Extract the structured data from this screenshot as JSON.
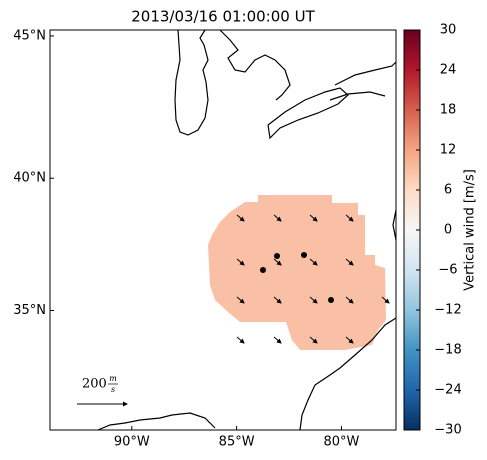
{
  "map": {
    "title": "2013/03/16 01:00:00 UT",
    "lonlim": [
      -93.9,
      -77.4
    ],
    "latlim": [
      30.2,
      45.2
    ],
    "lon_ticks": [
      {
        "value": -90,
        "label": "90°W"
      },
      {
        "value": -85,
        "label": "85°W"
      },
      {
        "value": -80,
        "label": "80°W"
      }
    ],
    "lat_ticks": [
      {
        "value": 45,
        "label": "45°N"
      },
      {
        "value": 40,
        "label": "40°N"
      },
      {
        "value": 35,
        "label": "35°N"
      }
    ],
    "field_value": 9,
    "scale_arrow": {
      "value": 200,
      "unit_top": "m",
      "unit_bottom": "s"
    },
    "colorbar": {
      "label": "Vertical wind [m/s]",
      "lim": [
        -30,
        30
      ],
      "colormap": [
        "#053061",
        "#2166ac",
        "#4393c3",
        "#92c5de",
        "#d1e5f0",
        "#f7f7f7",
        "#fddbc7",
        "#f4a582",
        "#d6604d",
        "#b2182b",
        "#67001f"
      ],
      "ticks": [
        30,
        24,
        18,
        12,
        6,
        0,
        {
          "value": -6,
          "label": "−6"
        },
        {
          "value": -12,
          "label": "−12"
        },
        {
          "value": -18,
          "label": "−18"
        },
        {
          "value": -24,
          "label": "−24"
        },
        {
          "value": -30,
          "label": "−30"
        }
      ]
    }
  }
}
